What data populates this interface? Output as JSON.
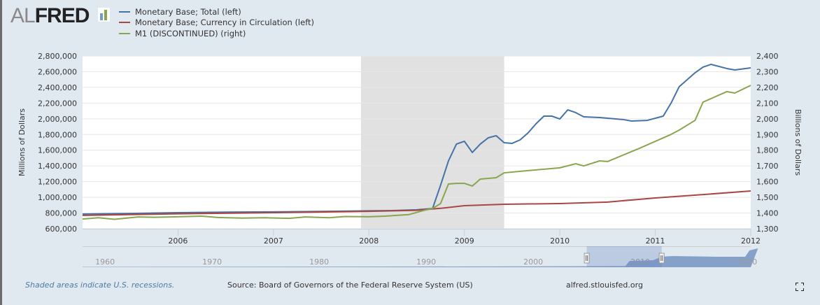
{
  "logo": {
    "text_light": "AL",
    "text_bold": "FRED"
  },
  "colors": {
    "total": "#4572a7",
    "currency": "#aa4643",
    "m1": "#89a54e",
    "recession": "#e1e1e1",
    "navigator": "#6f8fbf"
  },
  "chart_data": {
    "type": "line",
    "xlim": [
      "2005-01",
      "2012-01"
    ],
    "x_ticks": [
      "2006",
      "2007",
      "2008",
      "2009",
      "2010",
      "2011",
      "2012"
    ],
    "ylabel_left": "Millions of Dollars",
    "ylabel_right": "Billions of Dollars",
    "ylim_left": [
      600000,
      2800000
    ],
    "ylim_right": [
      1300,
      2400
    ],
    "y_ticks_left": [
      "600,000",
      "800,000",
      "1,000,000",
      "1,200,000",
      "1,400,000",
      "1,600,000",
      "1,800,000",
      "2,000,000",
      "2,200,000",
      "2,400,000",
      "2,600,000",
      "2,800,000"
    ],
    "y_ticks_right": [
      "1,300",
      "1,400",
      "1,500",
      "1,600",
      "1,700",
      "1,800",
      "1,900",
      "2,000",
      "2,100",
      "2,200",
      "2,300",
      "2,400"
    ],
    "grid": true,
    "legend_position": "top-left",
    "recessions": [
      [
        "2007-12",
        "2009-06"
      ]
    ],
    "series": [
      {
        "name": "Monetary Base; Total (left)",
        "axis": "left",
        "color": "#4572a7",
        "points": [
          [
            "2005-01",
            787000
          ],
          [
            "2005-07",
            795000
          ],
          [
            "2006-01",
            805000
          ],
          [
            "2006-07",
            812000
          ],
          [
            "2007-01",
            815000
          ],
          [
            "2007-07",
            820000
          ],
          [
            "2008-01",
            828000
          ],
          [
            "2008-04",
            832000
          ],
          [
            "2008-07",
            842000
          ],
          [
            "2008-09",
            858000
          ],
          [
            "2008-10",
            1152000
          ],
          [
            "2008-11",
            1464000
          ],
          [
            "2008-12",
            1678000
          ],
          [
            "2009-01",
            1714000
          ],
          [
            "2009-02",
            1571000
          ],
          [
            "2009-03",
            1678000
          ],
          [
            "2009-04",
            1758000
          ],
          [
            "2009-05",
            1785000
          ],
          [
            "2009-06",
            1696000
          ],
          [
            "2009-07",
            1687000
          ],
          [
            "2009-08",
            1731000
          ],
          [
            "2009-09",
            1820000
          ],
          [
            "2009-10",
            1936000
          ],
          [
            "2009-11",
            2034000
          ],
          [
            "2009-12",
            2034000
          ],
          [
            "2010-01",
            1998000
          ],
          [
            "2010-02",
            2114000
          ],
          [
            "2010-03",
            2079000
          ],
          [
            "2010-04",
            2025000
          ],
          [
            "2010-06",
            2016000
          ],
          [
            "2010-09",
            1990000
          ],
          [
            "2010-10",
            1972000
          ],
          [
            "2010-12",
            1980000
          ],
          [
            "2011-02",
            2034000
          ],
          [
            "2011-03",
            2203000
          ],
          [
            "2011-04",
            2408000
          ],
          [
            "2011-05",
            2497000
          ],
          [
            "2011-06",
            2586000
          ],
          [
            "2011-07",
            2658000
          ],
          [
            "2011-08",
            2693000
          ],
          [
            "2011-10",
            2640000
          ],
          [
            "2011-11",
            2622000
          ],
          [
            "2012-01",
            2649000
          ]
        ]
      },
      {
        "name": "Monetary Base; Currency in Circulation (left)",
        "axis": "left",
        "color": "#aa4643",
        "points": [
          [
            "2005-01",
            770000
          ],
          [
            "2006-01",
            790000
          ],
          [
            "2007-01",
            805000
          ],
          [
            "2008-01",
            822000
          ],
          [
            "2008-07",
            835000
          ],
          [
            "2008-10",
            860000
          ],
          [
            "2009-01",
            894000
          ],
          [
            "2009-06",
            912000
          ],
          [
            "2010-01",
            921000
          ],
          [
            "2010-07",
            940000
          ],
          [
            "2011-01",
            992000
          ],
          [
            "2011-07",
            1035000
          ],
          [
            "2012-01",
            1081000
          ]
        ]
      },
      {
        "name": "M1 (DISCONTINUED) (right)",
        "axis": "right",
        "color": "#89a54e",
        "points": [
          [
            "2005-01",
            1362
          ],
          [
            "2005-03",
            1370
          ],
          [
            "2005-05",
            1360
          ],
          [
            "2005-08",
            1375
          ],
          [
            "2005-10",
            1373
          ],
          [
            "2006-01",
            1376
          ],
          [
            "2006-04",
            1380
          ],
          [
            "2006-06",
            1372
          ],
          [
            "2006-09",
            1368
          ],
          [
            "2006-12",
            1370
          ],
          [
            "2007-03",
            1366
          ],
          [
            "2007-05",
            1375
          ],
          [
            "2007-08",
            1370
          ],
          [
            "2007-10",
            1378
          ],
          [
            "2008-01",
            1376
          ],
          [
            "2008-03",
            1380
          ],
          [
            "2008-06",
            1390
          ],
          [
            "2008-08",
            1418
          ],
          [
            "2008-09",
            1429
          ],
          [
            "2008-10",
            1460
          ],
          [
            "2008-11",
            1585
          ],
          [
            "2008-12",
            1589
          ],
          [
            "2009-01",
            1589
          ],
          [
            "2009-02",
            1572
          ],
          [
            "2009-03",
            1616
          ],
          [
            "2009-05",
            1625
          ],
          [
            "2009-06",
            1656
          ],
          [
            "2009-09",
            1670
          ],
          [
            "2010-01",
            1688
          ],
          [
            "2010-03",
            1714
          ],
          [
            "2010-04",
            1700
          ],
          [
            "2010-06",
            1732
          ],
          [
            "2010-07",
            1728
          ],
          [
            "2010-11",
            1812
          ],
          [
            "2011-03",
            1901
          ],
          [
            "2011-04",
            1928
          ],
          [
            "2011-06",
            1990
          ],
          [
            "2011-07",
            2106
          ],
          [
            "2011-10",
            2173
          ],
          [
            "2011-11",
            2164
          ],
          [
            "2012-01",
            2213
          ]
        ]
      }
    ],
    "navigator": {
      "ticks": [
        "1960",
        "1970",
        "1980",
        "1990",
        "2000",
        "2010",
        "2020"
      ],
      "selected_range": [
        "2005-01",
        "2012-01"
      ]
    }
  },
  "footer": {
    "note": "Shaded areas indicate U.S. recessions.",
    "source": "Source: Board of Governors of the Federal Reserve System (US)",
    "url": "alfred.stlouisfed.org"
  }
}
